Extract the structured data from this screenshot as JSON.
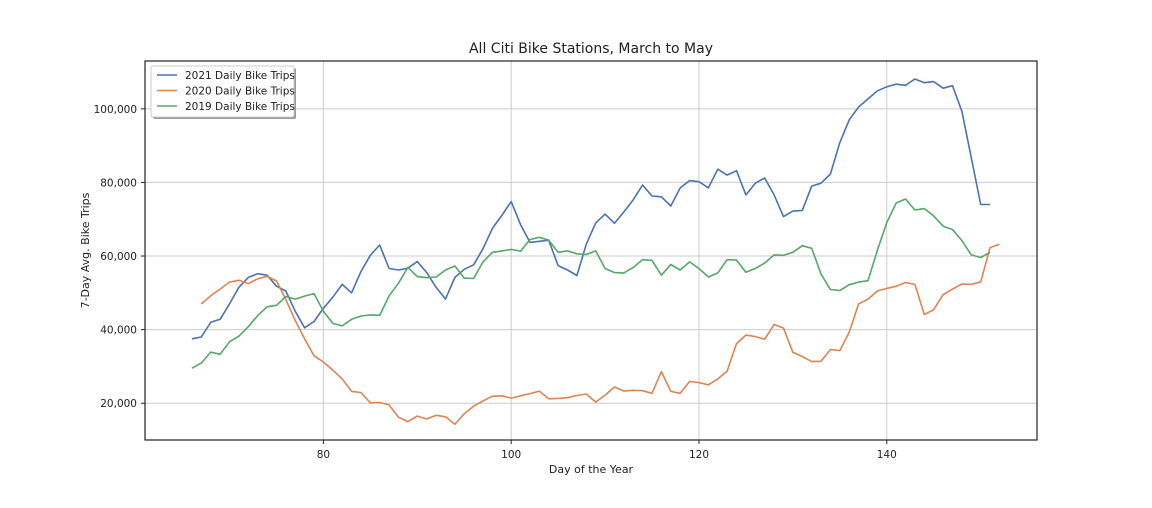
{
  "chart_data": {
    "type": "line",
    "title": "All Citi Bike Stations, March to May",
    "xlabel": "Day of the Year",
    "ylabel": "7-Day Avg. Bike Trips",
    "xlim": [
      61,
      156
    ],
    "ylim": [
      10000,
      113000
    ],
    "xticks": [
      80,
      100,
      120,
      140
    ],
    "yticks": [
      20000,
      40000,
      60000,
      80000,
      100000
    ],
    "ytick_labels": [
      "20,000",
      "40,000",
      "60,000",
      "80,000",
      "100,000"
    ],
    "grid": true,
    "legend_position": "upper-left",
    "series": [
      {
        "name": "2021 Daily Bike Trips",
        "color": "#4c72b0",
        "x": [
          66,
          67,
          68,
          69,
          70,
          71,
          72,
          73,
          74,
          75,
          76,
          77,
          78,
          79,
          80,
          81,
          82,
          83,
          84,
          85,
          86,
          87,
          88,
          89,
          90,
          91,
          92,
          93,
          94,
          95,
          96,
          97,
          98,
          99,
          100,
          101,
          102,
          103,
          104,
          105,
          106,
          107,
          108,
          109,
          110,
          111,
          112,
          113,
          114,
          115,
          116,
          117,
          118,
          119,
          120,
          121,
          122,
          123,
          124,
          125,
          126,
          127,
          128,
          129,
          130,
          131,
          132,
          133,
          134,
          135,
          136,
          137,
          138,
          139,
          140,
          141,
          142,
          143,
          144,
          145,
          146,
          147,
          148,
          149,
          150,
          151
        ],
        "y": [
          37500,
          38000,
          42000,
          42800,
          47000,
          51500,
          54200,
          55200,
          54800,
          51800,
          50500,
          45000,
          40500,
          42200,
          45800,
          48800,
          52300,
          50000,
          55800,
          60200,
          63000,
          56600,
          56200,
          56700,
          58500,
          55500,
          51500,
          48300,
          54200,
          56400,
          57600,
          62000,
          67500,
          71000,
          74800,
          68500,
          63700,
          64000,
          64300,
          57400,
          56200,
          54700,
          63200,
          69000,
          71400,
          68900,
          72000,
          75300,
          79300,
          76300,
          76100,
          73600,
          78500,
          80500,
          80200,
          78500,
          83600,
          82000,
          83200,
          76600,
          79800,
          81200,
          76600,
          70700,
          72200,
          72400,
          79000,
          79800,
          82300,
          90800,
          97000,
          100500,
          102700,
          104900,
          106000,
          106700,
          106400,
          108100,
          107100,
          107400,
          105600,
          106300,
          99300,
          86700,
          74000,
          74000
        ]
      },
      {
        "name": "2020 Daily Bike Trips",
        "color": "#dd8452",
        "x": [
          67,
          68,
          69,
          70,
          71,
          72,
          73,
          74,
          75,
          76,
          77,
          78,
          79,
          80,
          81,
          82,
          83,
          84,
          85,
          86,
          87,
          88,
          89,
          90,
          91,
          92,
          93,
          94,
          95,
          96,
          97,
          98,
          99,
          100,
          101,
          102,
          103,
          104,
          105,
          106,
          107,
          108,
          109,
          110,
          111,
          112,
          113,
          114,
          115,
          116,
          117,
          118,
          119,
          120,
          121,
          122,
          123,
          124,
          125,
          126,
          127,
          128,
          129,
          130,
          131,
          132,
          133,
          134,
          135,
          136,
          137,
          138,
          139,
          140,
          141,
          142,
          143,
          144,
          145,
          146,
          147,
          148,
          149,
          150,
          151,
          152
        ],
        "y": [
          47000,
          49200,
          51000,
          52900,
          53400,
          52500,
          53800,
          54500,
          53200,
          48200,
          42500,
          37500,
          32900,
          31200,
          29000,
          26600,
          23200,
          22900,
          20100,
          20200,
          19500,
          16200,
          15000,
          16500,
          15700,
          16700,
          16300,
          14300,
          17100,
          19200,
          20600,
          21900,
          22000,
          21400,
          22000,
          22600,
          23300,
          21200,
          21300,
          21500,
          22100,
          22500,
          20300,
          22200,
          24400,
          23300,
          23500,
          23400,
          22700,
          28600,
          23200,
          22700,
          25900,
          25600,
          25000,
          26600,
          28700,
          36200,
          38500,
          38100,
          37400,
          41400,
          40400,
          33800,
          32700,
          31300,
          31400,
          34600,
          34300,
          39300,
          47000,
          48300,
          50500,
          51200,
          51800,
          52800,
          52300,
          44100,
          45400,
          49500,
          51000,
          52400,
          52300,
          53000,
          62300,
          63200
        ]
      },
      {
        "name": "2019 Daily Bike Trips",
        "color": "#55a868",
        "x": [
          66,
          67,
          68,
          69,
          70,
          71,
          72,
          73,
          74,
          75,
          76,
          77,
          78,
          79,
          80,
          81,
          82,
          83,
          84,
          85,
          86,
          87,
          88,
          89,
          90,
          91,
          92,
          93,
          94,
          95,
          96,
          97,
          98,
          99,
          100,
          101,
          102,
          103,
          104,
          105,
          106,
          107,
          108,
          109,
          110,
          111,
          112,
          113,
          114,
          115,
          116,
          117,
          118,
          119,
          120,
          121,
          122,
          123,
          124,
          125,
          126,
          127,
          128,
          129,
          130,
          131,
          132,
          133,
          134,
          135,
          136,
          137,
          138,
          139,
          140,
          141,
          142,
          143,
          144,
          145,
          146,
          147,
          148,
          149,
          150,
          151
        ],
        "y": [
          29500,
          30900,
          33900,
          33300,
          36700,
          38200,
          40800,
          43800,
          46200,
          46600,
          49000,
          48300,
          49100,
          49800,
          45000,
          41700,
          41000,
          42800,
          43700,
          44000,
          43900,
          49200,
          52600,
          56900,
          54400,
          54100,
          54300,
          56200,
          57300,
          54000,
          53900,
          58400,
          61000,
          61400,
          61800,
          61300,
          64500,
          65100,
          64300,
          61000,
          61400,
          60600,
          60400,
          61400,
          56600,
          55500,
          55400,
          56900,
          59000,
          58800,
          54800,
          57700,
          56200,
          58400,
          56600,
          54300,
          55400,
          59000,
          58900,
          55600,
          56600,
          58100,
          60300,
          60200,
          61000,
          62800,
          62100,
          55100,
          50900,
          50600,
          52200,
          52900,
          53300,
          61600,
          69100,
          74400,
          75500,
          72500,
          72900,
          70900,
          68100,
          67200,
          64200,
          60300,
          59600,
          61000
        ]
      }
    ]
  }
}
